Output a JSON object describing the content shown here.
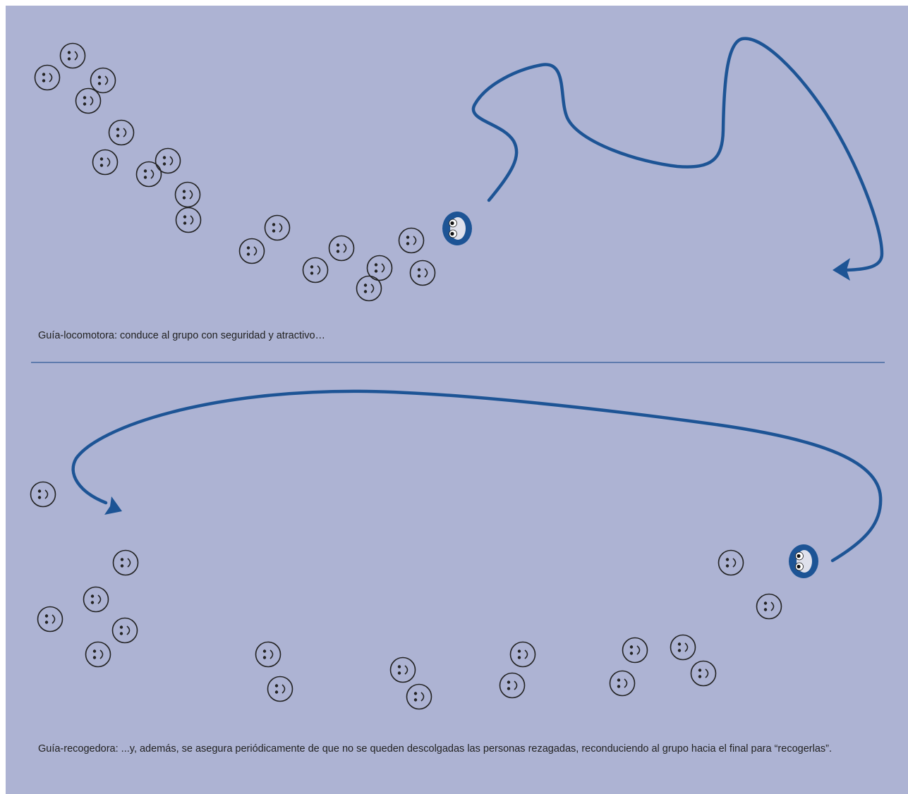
{
  "captions": {
    "top": "Guía-locomotora: conduce al grupo con seguridad y atractivo…",
    "bottom": "Guía-recogedora: ...y, además, se asegura periódicamente de que no se queden descolgadas las personas rezagadas, reconduciendo al grupo hacia el final para “recogerlas”."
  },
  "colors": {
    "background": "#adb3d3",
    "path": "#1d5495",
    "divider": "#2f5a96",
    "face_outline": "#222222",
    "guide_fill": "#1d5495"
  },
  "icons": {
    "group_member": "smiley-face-icon",
    "guide": "guide-face-icon",
    "path": "path-arrow"
  }
}
